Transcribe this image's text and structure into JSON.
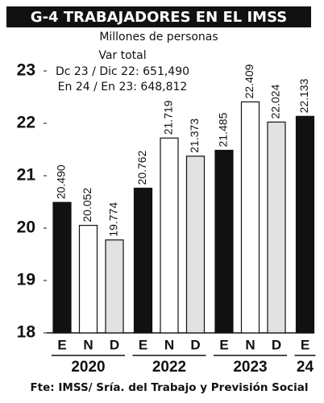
{
  "chart_data": {
    "type": "bar",
    "title": "G-4 TRABAJADORES EN EL IMSS",
    "subtitle": "Millones de personas",
    "annotations": [
      "Var total",
      "Dc 23 / Dic 22: 651,490",
      "En 24 / En 23: 648,812"
    ],
    "source": "Fte: IMSS/ Sría. del Trabajo y Previsión Social",
    "groups": [
      {
        "label": "2020",
        "categories": [
          "E",
          "N",
          "D"
        ],
        "values": [
          20.49,
          20.052,
          19.774
        ],
        "value_labels": [
          "20.490",
          "20.052",
          "19.774"
        ]
      },
      {
        "label": "2022",
        "categories": [
          "E",
          "N",
          "D"
        ],
        "values": [
          20.762,
          21.719,
          21.373
        ],
        "value_labels": [
          "20.762",
          "21.719",
          "21.373"
        ]
      },
      {
        "label": "2023",
        "categories": [
          "E",
          "N",
          "D"
        ],
        "values": [
          21.485,
          22.409,
          22.024
        ],
        "value_labels": [
          "21.485",
          "22.409",
          "22.024"
        ]
      },
      {
        "label": "24",
        "categories": [
          "E"
        ],
        "values": [
          22.133
        ],
        "value_labels": [
          "22.133"
        ]
      }
    ],
    "category_colors": {
      "E": "#111111",
      "N": "#ffffff",
      "D": "#e2e2e2"
    },
    "ylim": [
      18,
      23
    ],
    "yticks": [
      18,
      19,
      20,
      21,
      22,
      23
    ]
  }
}
